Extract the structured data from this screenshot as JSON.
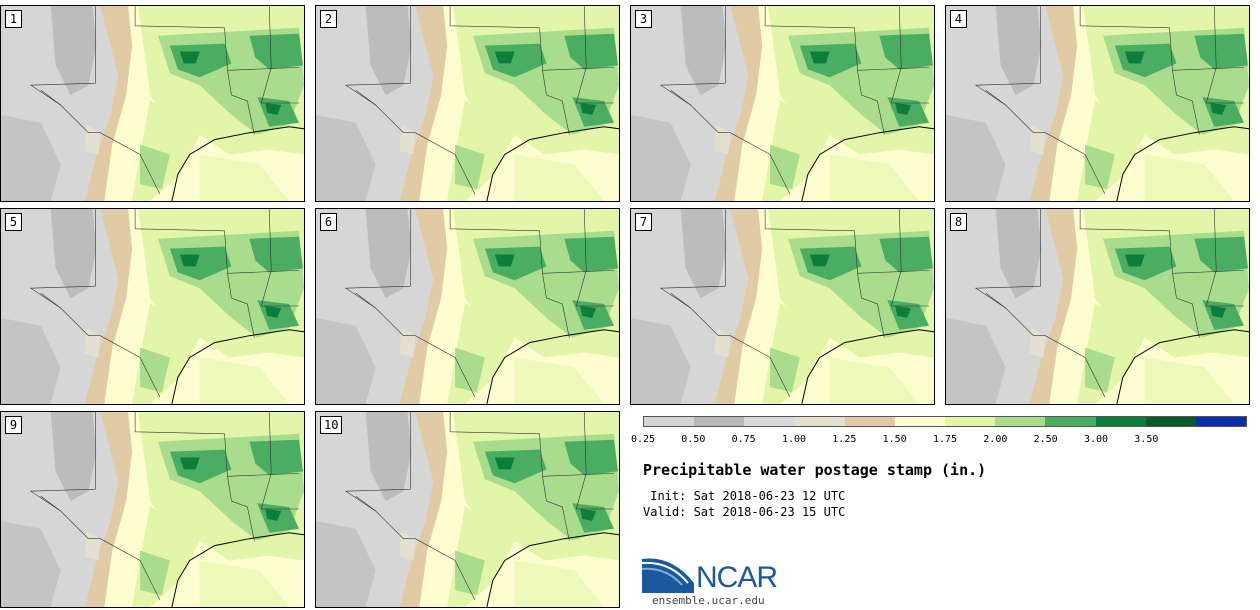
{
  "panels": [
    {
      "label": "1"
    },
    {
      "label": "2"
    },
    {
      "label": "3"
    },
    {
      "label": "4"
    },
    {
      "label": "5"
    },
    {
      "label": "6"
    },
    {
      "label": "7"
    },
    {
      "label": "8"
    },
    {
      "label": "9"
    },
    {
      "label": "10"
    }
  ],
  "colorbar": {
    "colors": [
      "#d4d4d4",
      "#b8b8b8",
      "#d8d8d8",
      "#e4e0cf",
      "#e0cba4",
      "#fdfdd0",
      "#e2f5a8",
      "#a9dc8c",
      "#4aad62",
      "#0c7d3a",
      "#0a5a2b",
      "#0a2ea6"
    ],
    "ticks": [
      "0.25",
      "0.50",
      "0.75",
      "1.00",
      "1.25",
      "1.50",
      "1.75",
      "2.00",
      "2.50",
      "3.00",
      "3.50"
    ]
  },
  "title": "Precipitable water postage stamp (in.)",
  "init_line": " Init: Sat 2018-06-23 12 UTC",
  "valid_line": "Valid: Sat 2018-06-23 15 UTC",
  "logo": {
    "text": "NCAR",
    "url": "ensemble.ucar.edu"
  }
}
